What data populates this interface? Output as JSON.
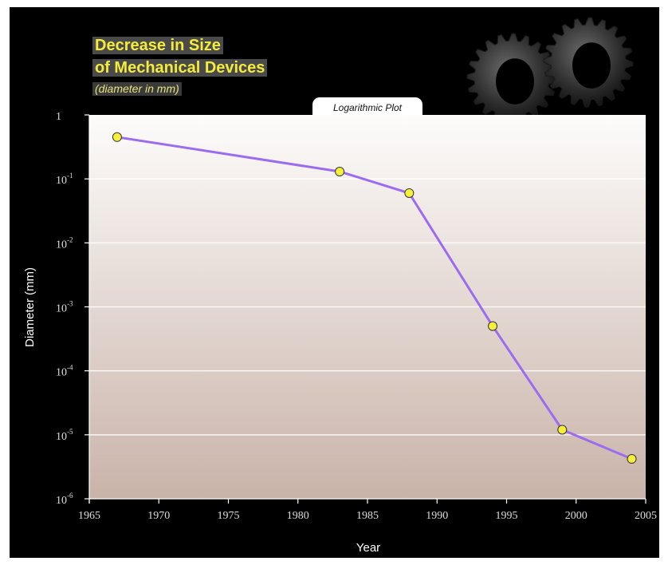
{
  "chart_data": {
    "type": "line",
    "title_line1": "Decrease in Size",
    "title_line2": "of Mechanical Devices",
    "subtitle": "(diameter in mm)",
    "plot_label": "Logarithmic Plot",
    "xlabel": "Year",
    "ylabel": "Diameter (mm)",
    "xlim": [
      1965,
      2005
    ],
    "ylim": [
      1e-06,
      1
    ],
    "yscale": "log",
    "x_ticks": [
      "1965",
      "1970",
      "1975",
      "1980",
      "1985",
      "1990",
      "1995",
      "2000",
      "2005"
    ],
    "y_ticks": [
      {
        "base": "1",
        "exp": ""
      },
      {
        "base": "10",
        "exp": "-1"
      },
      {
        "base": "10",
        "exp": "-2"
      },
      {
        "base": "10",
        "exp": "-3"
      },
      {
        "base": "10",
        "exp": "-4"
      },
      {
        "base": "10",
        "exp": "-5"
      },
      {
        "base": "10",
        "exp": "-6"
      }
    ],
    "grid": true,
    "x": [
      1967,
      1983,
      1988,
      1994,
      1999,
      2004
    ],
    "y": [
      0.45,
      0.13,
      0.06,
      0.0005,
      1.2e-05,
      4.2e-06
    ],
    "line_color": "#9b6cf0",
    "marker_color": "#f5f03a",
    "background_top": "#fdfcfb",
    "background_bottom": "#c9b3a9"
  }
}
